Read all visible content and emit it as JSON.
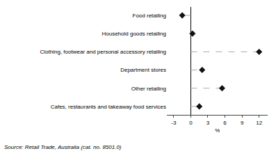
{
  "chart_data": {
    "type": "dot",
    "orientation": "horizontal",
    "categories": [
      "Food retailing",
      "Household goods retailing",
      "Clothing, footwear and personal accessory retailing",
      "Department stores",
      "Other retailing",
      "Cafes, restaurants and takeaway food services"
    ],
    "values": [
      -1.5,
      0.3,
      12.0,
      2.0,
      5.5,
      1.5
    ],
    "xlim": [
      -4.2,
      13.5
    ],
    "xticks": [
      -3,
      0,
      3,
      6,
      9,
      12
    ],
    "xlabel": "%",
    "annotation": "Source: Retail Trade, Australia (cat. no. 8501.0)",
    "color": "#111111",
    "marker": "diamond",
    "line_style": "dashed",
    "grid": false
  }
}
